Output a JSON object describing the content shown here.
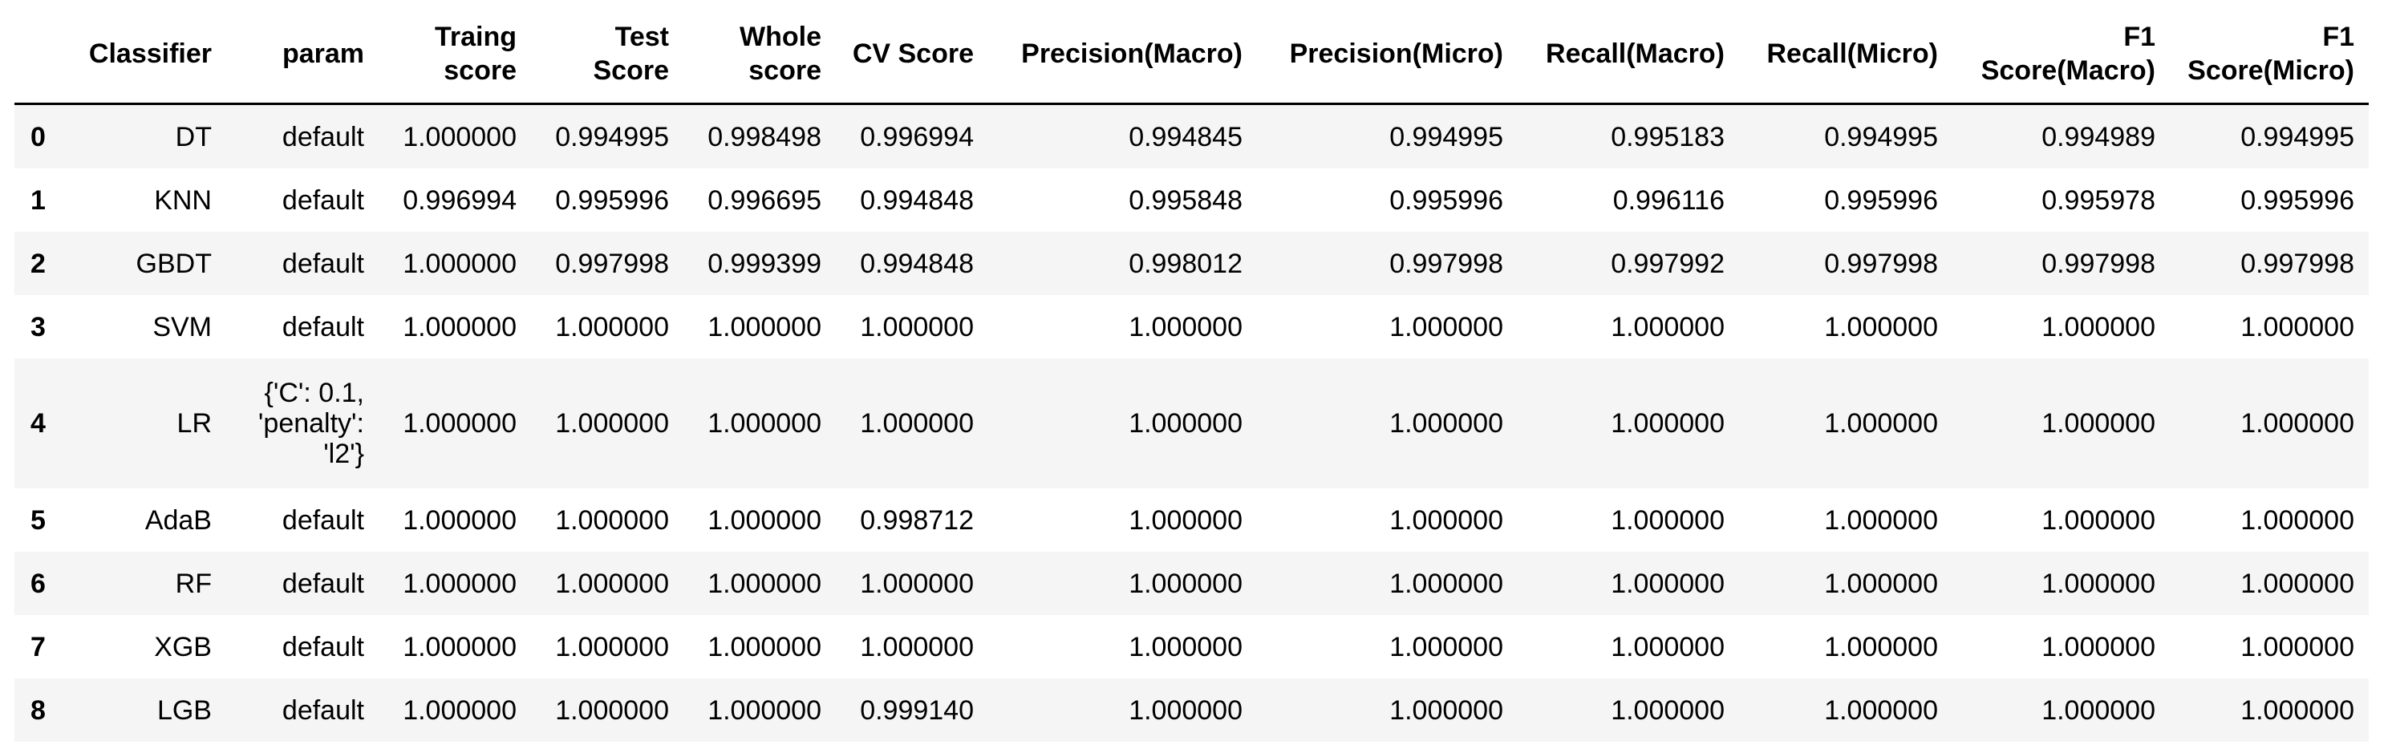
{
  "table": {
    "columns": [
      "",
      "Classifier",
      "param",
      "Traing score",
      "Test Score",
      "Whole score",
      "CV Score",
      "Precision(Macro)",
      "Precision(Micro)",
      "Recall(Macro)",
      "Recall(Micro)",
      "F1 Score(Macro)",
      "F1 Score(Micro)"
    ],
    "rows": [
      [
        "0",
        "DT",
        "default",
        "1.000000",
        "0.994995",
        "0.998498",
        "0.996994",
        "0.994845",
        "0.994995",
        "0.995183",
        "0.994995",
        "0.994989",
        "0.994995"
      ],
      [
        "1",
        "KNN",
        "default",
        "0.996994",
        "0.995996",
        "0.996695",
        "0.994848",
        "0.995848",
        "0.995996",
        "0.996116",
        "0.995996",
        "0.995978",
        "0.995996"
      ],
      [
        "2",
        "GBDT",
        "default",
        "1.000000",
        "0.997998",
        "0.999399",
        "0.994848",
        "0.998012",
        "0.997998",
        "0.997992",
        "0.997998",
        "0.997998",
        "0.997998"
      ],
      [
        "3",
        "SVM",
        "default",
        "1.000000",
        "1.000000",
        "1.000000",
        "1.000000",
        "1.000000",
        "1.000000",
        "1.000000",
        "1.000000",
        "1.000000",
        "1.000000"
      ],
      [
        "4",
        "LR",
        "{'C': 0.1, 'penalty': 'l2'}",
        "1.000000",
        "1.000000",
        "1.000000",
        "1.000000",
        "1.000000",
        "1.000000",
        "1.000000",
        "1.000000",
        "1.000000",
        "1.000000"
      ],
      [
        "5",
        "AdaB",
        "default",
        "1.000000",
        "1.000000",
        "1.000000",
        "0.998712",
        "1.000000",
        "1.000000",
        "1.000000",
        "1.000000",
        "1.000000",
        "1.000000"
      ],
      [
        "6",
        "RF",
        "default",
        "1.000000",
        "1.000000",
        "1.000000",
        "1.000000",
        "1.000000",
        "1.000000",
        "1.000000",
        "1.000000",
        "1.000000",
        "1.000000"
      ],
      [
        "7",
        "XGB",
        "default",
        "1.000000",
        "1.000000",
        "1.000000",
        "1.000000",
        "1.000000",
        "1.000000",
        "1.000000",
        "1.000000",
        "1.000000",
        "1.000000"
      ],
      [
        "8",
        "LGB",
        "default",
        "1.000000",
        "1.000000",
        "1.000000",
        "0.999140",
        "1.000000",
        "1.000000",
        "1.000000",
        "1.000000",
        "1.000000",
        "1.000000"
      ]
    ]
  }
}
